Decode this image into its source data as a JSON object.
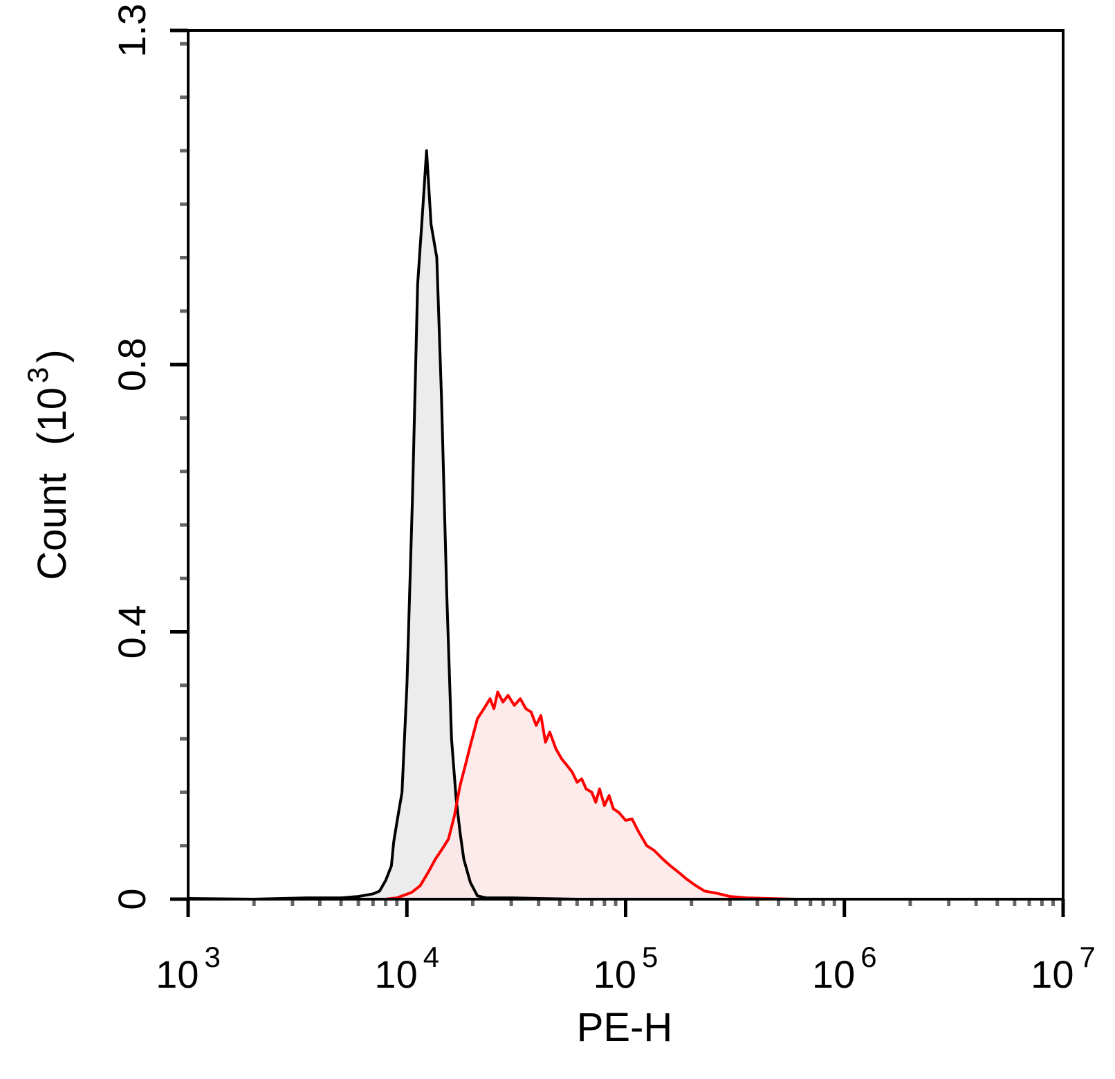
{
  "chart_data": {
    "type": "area",
    "xlabel": "PE-H",
    "ylabel": "Count",
    "ylabel_unit": "(10",
    "ylabel_unit_exp": "3",
    "ylabel_unit_close": ")",
    "xscale": "log",
    "xlim": [
      1000,
      10000000
    ],
    "ylim": [
      0,
      1.3
    ],
    "x_ticks": [
      {
        "base": "10",
        "exp": "3",
        "value": 1000
      },
      {
        "base": "10",
        "exp": "4",
        "value": 10000
      },
      {
        "base": "10",
        "exp": "5",
        "value": 100000
      },
      {
        "base": "10",
        "exp": "6",
        "value": 1000000
      },
      {
        "base": "10",
        "exp": "7",
        "value": 10000000
      }
    ],
    "y_ticks": [
      {
        "label": "0",
        "value": 0
      },
      {
        "label": "0.4",
        "value": 0.4
      },
      {
        "label": "0.8",
        "value": 0.8
      },
      {
        "label": "1.3",
        "value": 1.3
      }
    ],
    "y_minor_step": 0.08,
    "grid": false,
    "legend": "none",
    "series": [
      {
        "color": "#000000",
        "fill": "#e9e9e9",
        "points": [
          [
            1000,
            0.001
          ],
          [
            2000,
            0.0
          ],
          [
            3500,
            0.002
          ],
          [
            5000,
            0.002
          ],
          [
            6000,
            0.004
          ],
          [
            7000,
            0.008
          ],
          [
            7500,
            0.012
          ],
          [
            8000,
            0.028
          ],
          [
            8500,
            0.05
          ],
          [
            8700,
            0.085
          ],
          [
            9000,
            0.115
          ],
          [
            9500,
            0.16
          ],
          [
            10000,
            0.32
          ],
          [
            10600,
            0.6
          ],
          [
            11200,
            0.92
          ],
          [
            11800,
            1.03
          ],
          [
            12300,
            1.12
          ],
          [
            12900,
            1.01
          ],
          [
            13700,
            0.96
          ],
          [
            14400,
            0.75
          ],
          [
            15200,
            0.46
          ],
          [
            16000,
            0.24
          ],
          [
            16800,
            0.15
          ],
          [
            17500,
            0.1
          ],
          [
            18200,
            0.06
          ],
          [
            19500,
            0.025
          ],
          [
            21000,
            0.005
          ],
          [
            23000,
            0.002
          ],
          [
            30000,
            0.002
          ],
          [
            40000,
            0.001
          ],
          [
            60000,
            0.0
          ]
        ]
      },
      {
        "color": "#ff0000",
        "fill": "#fde6e8",
        "points": [
          [
            6000,
            0.0
          ],
          [
            8000,
            0.0
          ],
          [
            9000,
            0.002
          ],
          [
            10500,
            0.01
          ],
          [
            11500,
            0.02
          ],
          [
            12500,
            0.04
          ],
          [
            13500,
            0.06
          ],
          [
            14500,
            0.075
          ],
          [
            15500,
            0.09
          ],
          [
            16500,
            0.125
          ],
          [
            17500,
            0.17
          ],
          [
            18500,
            0.2
          ],
          [
            19500,
            0.23
          ],
          [
            21000,
            0.27
          ],
          [
            22500,
            0.285
          ],
          [
            24000,
            0.3
          ],
          [
            25000,
            0.285
          ],
          [
            26000,
            0.31
          ],
          [
            27500,
            0.295
          ],
          [
            29000,
            0.305
          ],
          [
            31000,
            0.29
          ],
          [
            33000,
            0.3
          ],
          [
            35000,
            0.285
          ],
          [
            37000,
            0.28
          ],
          [
            39000,
            0.26
          ],
          [
            41000,
            0.275
          ],
          [
            43000,
            0.235
          ],
          [
            45000,
            0.25
          ],
          [
            48000,
            0.225
          ],
          [
            51000,
            0.21
          ],
          [
            54000,
            0.2
          ],
          [
            57000,
            0.19
          ],
          [
            60000,
            0.175
          ],
          [
            63000,
            0.18
          ],
          [
            66000,
            0.165
          ],
          [
            70000,
            0.16
          ],
          [
            73000,
            0.145
          ],
          [
            76000,
            0.165
          ],
          [
            80000,
            0.14
          ],
          [
            84000,
            0.155
          ],
          [
            88000,
            0.135
          ],
          [
            93000,
            0.13
          ],
          [
            100000,
            0.118
          ],
          [
            107000,
            0.12
          ],
          [
            115000,
            0.1
          ],
          [
            125000,
            0.08
          ],
          [
            135000,
            0.073
          ],
          [
            148000,
            0.06
          ],
          [
            160000,
            0.05
          ],
          [
            175000,
            0.04
          ],
          [
            190000,
            0.03
          ],
          [
            210000,
            0.02
          ],
          [
            230000,
            0.012
          ],
          [
            260000,
            0.009
          ],
          [
            300000,
            0.004
          ],
          [
            360000,
            0.002
          ],
          [
            450000,
            0.001
          ],
          [
            600000,
            0.0
          ],
          [
            1000000,
            0.0
          ],
          [
            3000000,
            0.0
          ],
          [
            10000000,
            0.0
          ]
        ]
      }
    ]
  }
}
